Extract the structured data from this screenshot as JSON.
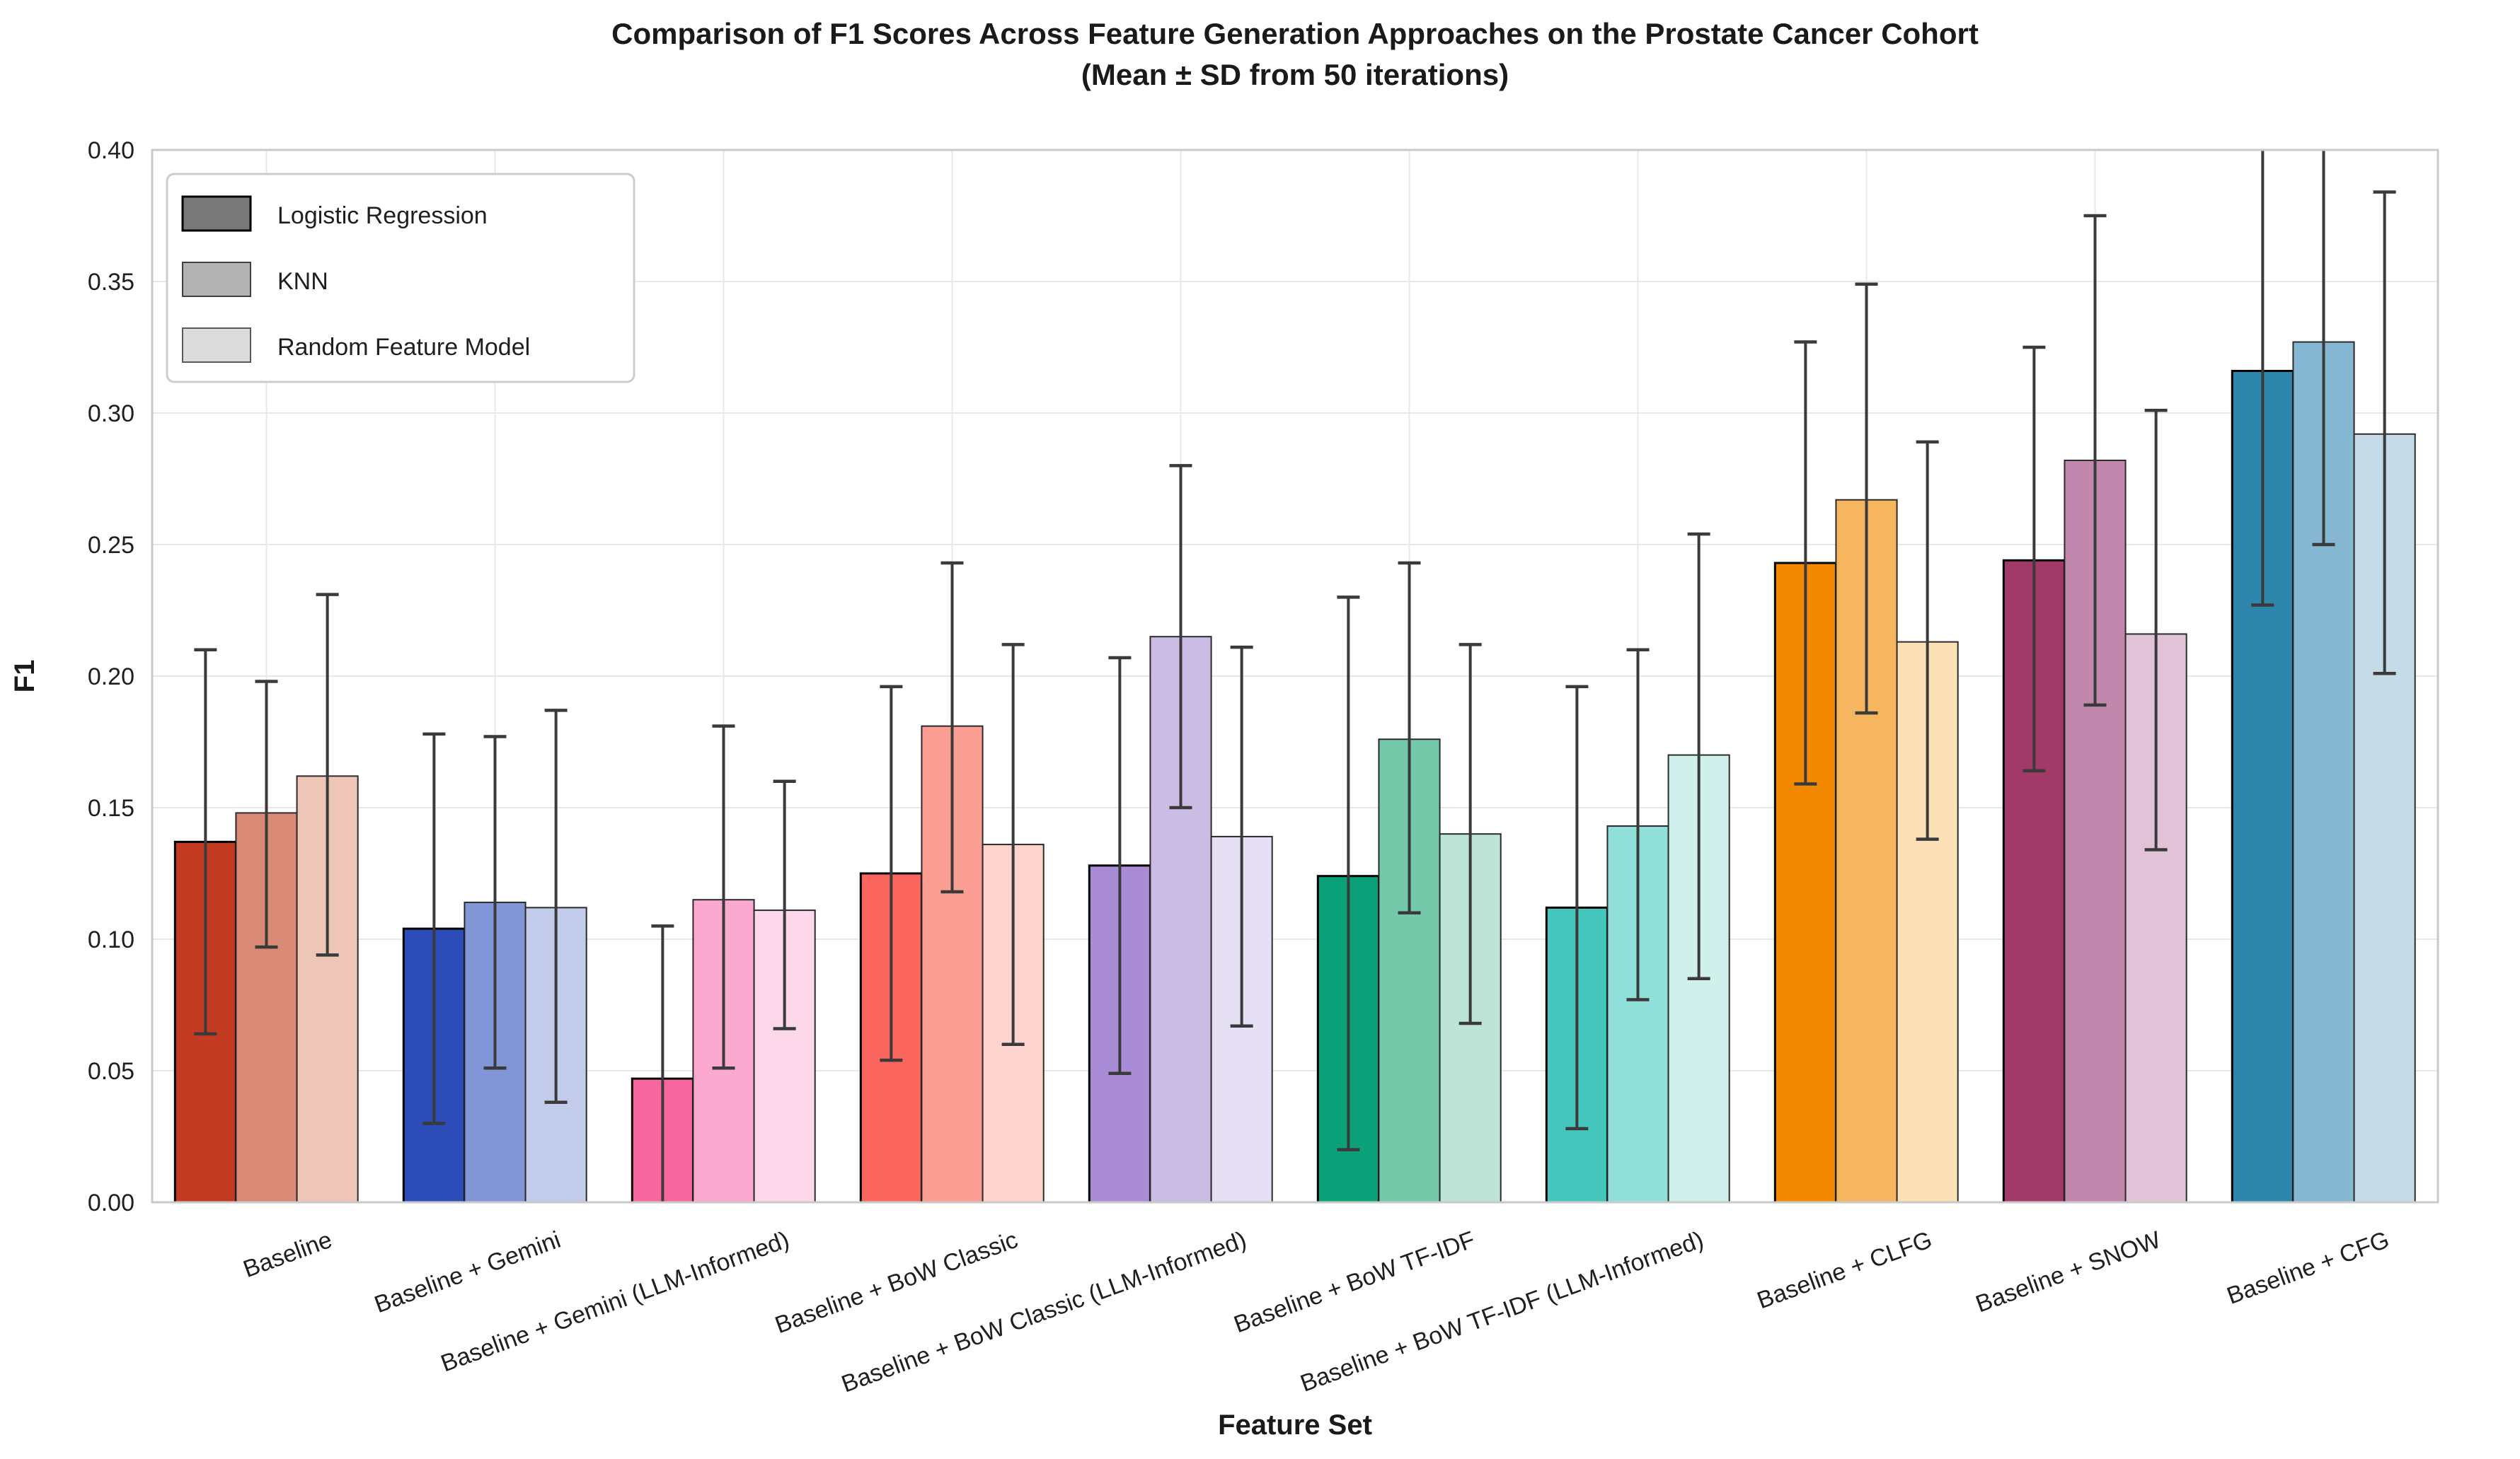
{
  "title": {
    "line1": "Comparison of F1 Scores Across Feature Generation Approaches on the Prostate Cancer Cohort",
    "line2": "(Mean ± SD from 50 iterations)"
  },
  "axes": {
    "x_label": "Feature Set",
    "y_label": "F1",
    "y_ticks": [
      "0.00",
      "0.05",
      "0.10",
      "0.15",
      "0.20",
      "0.25",
      "0.30",
      "0.35",
      "0.40"
    ]
  },
  "legend": {
    "items": [
      {
        "label": "Logistic Regression",
        "swatch": "#787878",
        "border": "#000000"
      },
      {
        "label": "KNN",
        "swatch": "#b2b2b2",
        "border": "#3f3f3f"
      },
      {
        "label": "Random Feature Model",
        "swatch": "#dcdcdc",
        "border": "#5a5a5a"
      }
    ]
  },
  "chart_data": {
    "type": "bar",
    "title": "Comparison of F1 Scores Across Feature Generation Approaches on the Prostate Cancer Cohort",
    "subtitle": "(Mean ± SD from 50 iterations)",
    "xlabel": "Feature Set",
    "ylabel": "F1",
    "ylim": [
      0,
      0.4
    ],
    "y_tick_step": 0.05,
    "grid": true,
    "legend_position": "upper left",
    "error_bars": "mean ± SD, 50 iterations",
    "error_color": "#3a3a3a",
    "grid_color": "#e8e8e8",
    "frame_color": "#c9c9c9",
    "categories": [
      "Baseline",
      "Baseline + Gemini",
      "Baseline + Gemini (LLM-Informed)",
      "Baseline + BoW Classic",
      "Baseline + BoW Classic (LLM-Informed)",
      "Baseline + BoW TF-IDF",
      "Baseline + BoW TF-IDF (LLM-Informed)",
      "Baseline + CLFG",
      "Baseline + SNOW",
      "Baseline + CFG"
    ],
    "series": [
      {
        "name": "Logistic Regression",
        "values": [
          0.137,
          0.104,
          0.047,
          0.125,
          0.128,
          0.124,
          0.112,
          0.243,
          0.244,
          0.316
        ],
        "err_lo": [
          0.064,
          0.03,
          -0.011,
          0.054,
          0.049,
          0.02,
          0.028,
          0.159,
          0.164,
          0.227
        ],
        "err_hi": [
          0.21,
          0.178,
          0.105,
          0.196,
          0.207,
          0.23,
          0.196,
          0.327,
          0.325,
          0.405
        ],
        "colors": [
          "#c23a22",
          "#2c4cb8",
          "#f9679f",
          "#fa665d",
          "#a98bd6",
          "#0aa178",
          "#45c6bc",
          "#f18a00",
          "#a13a68",
          "#2e86ad"
        ],
        "edge": "#000000",
        "edge_width": 3
      },
      {
        "name": "KNN",
        "values": [
          0.148,
          0.114,
          0.115,
          0.181,
          0.215,
          0.176,
          0.143,
          0.267,
          0.282,
          0.327
        ],
        "err_lo": [
          0.097,
          0.051,
          0.051,
          0.118,
          0.15,
          0.11,
          0.077,
          0.186,
          0.189,
          0.25
        ],
        "err_hi": [
          0.198,
          0.177,
          0.181,
          0.243,
          0.28,
          0.243,
          0.21,
          0.349,
          0.375,
          0.404
        ],
        "colors": [
          "#d98a76",
          "#8295d6",
          "#fba9ce",
          "#fb9e94",
          "#cbbce6",
          "#74c9ab",
          "#90dfd8",
          "#f6b660",
          "#c287ad",
          "#85b7d2"
        ],
        "edge": "#2b2b2b",
        "edge_width": 2
      },
      {
        "name": "Random Feature Model",
        "values": [
          0.162,
          0.112,
          0.111,
          0.136,
          0.139,
          0.14,
          0.17,
          0.213,
          0.216,
          0.292
        ],
        "err_lo": [
          0.094,
          0.038,
          0.066,
          0.06,
          0.067,
          0.068,
          0.085,
          0.138,
          0.134,
          0.201
        ],
        "err_hi": [
          0.231,
          0.187,
          0.16,
          0.212,
          0.211,
          0.212,
          0.254,
          0.289,
          0.301,
          0.384
        ],
        "colors": [
          "#eec6b7",
          "#c2cbea",
          "#fdd8ea",
          "#fdd3cd",
          "#e6e0f4",
          "#bde4d6",
          "#d0f0ec",
          "#fbe1b5",
          "#e2c2d6",
          "#c5dbe8"
        ],
        "edge": "#2b2b2b",
        "edge_width": 2
      }
    ]
  }
}
